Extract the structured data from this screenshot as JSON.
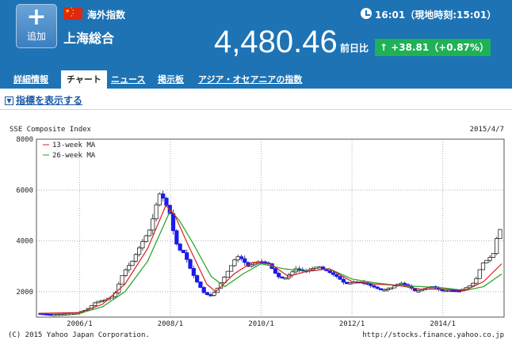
{
  "header": {
    "add_button_label": "追加",
    "category": "海外指数",
    "index_name": "上海総合",
    "time_text": "16:01（現地時刻:15:01）",
    "price": "4,480.46",
    "change_label": "前日比",
    "change_text": "↑ +38.81（+0.87%）",
    "flag_icon": "china-flag-icon",
    "colors": {
      "header_bg": "#1e73b4",
      "change_bg": "#1fb156"
    }
  },
  "tabs": [
    {
      "label": "詳細情報"
    },
    {
      "label": "チャート"
    },
    {
      "label": "ニュース"
    },
    {
      "label": "掲示板"
    },
    {
      "label": "アジア・オセアニアの指数"
    }
  ],
  "active_tab": "チャート",
  "indicator_link": "指標を表示する",
  "chart_data": {
    "type": "candlestick",
    "title": "SSE Composite Index",
    "date": "2015/4/7",
    "ylim": [
      1000,
      8000
    ],
    "y_ticks": [
      8000,
      6000,
      4000,
      2000
    ],
    "x_ticks": [
      {
        "label": "2006/1",
        "t": 2006.0
      },
      {
        "label": "2008/1",
        "t": 2008.0
      },
      {
        "label": "2010/1",
        "t": 2010.0
      },
      {
        "label": "2012/1",
        "t": 2012.0
      },
      {
        "label": "2014/1",
        "t": 2014.0
      }
    ],
    "x_range": [
      2005.05,
      2015.35
    ],
    "grid": true,
    "legend": {
      "position": "top-left",
      "entries": [
        {
          "name": "13-week MA",
          "color": "#d62020"
        },
        {
          "name": "26-week MA",
          "color": "#21a321"
        }
      ]
    },
    "up_color": "#ffffff",
    "down_color": "#1a1aee",
    "close_series": [
      [
        2005.1,
        1150
      ],
      [
        2005.4,
        1100
      ],
      [
        2005.7,
        1120
      ],
      [
        2006.0,
        1170
      ],
      [
        2006.2,
        1300
      ],
      [
        2006.4,
        1600
      ],
      [
        2006.6,
        1680
      ],
      [
        2006.8,
        1850
      ],
      [
        2007.0,
        2750
      ],
      [
        2007.2,
        3200
      ],
      [
        2007.4,
        3900
      ],
      [
        2007.6,
        4500
      ],
      [
        2007.75,
        5600
      ],
      [
        2007.83,
        6000
      ],
      [
        2007.9,
        5500
      ],
      [
        2008.0,
        5300
      ],
      [
        2008.1,
        4400
      ],
      [
        2008.2,
        3700
      ],
      [
        2008.35,
        3500
      ],
      [
        2008.5,
        2800
      ],
      [
        2008.65,
        2300
      ],
      [
        2008.8,
        1900
      ],
      [
        2008.95,
        1850
      ],
      [
        2009.1,
        2200
      ],
      [
        2009.3,
        2800
      ],
      [
        2009.5,
        3400
      ],
      [
        2009.6,
        3300
      ],
      [
        2009.75,
        3000
      ],
      [
        2010.0,
        3200
      ],
      [
        2010.2,
        3100
      ],
      [
        2010.4,
        2600
      ],
      [
        2010.55,
        2500
      ],
      [
        2010.8,
        2900
      ],
      [
        2011.0,
        2800
      ],
      [
        2011.3,
        3000
      ],
      [
        2011.5,
        2800
      ],
      [
        2011.7,
        2600
      ],
      [
        2011.9,
        2300
      ],
      [
        2012.1,
        2400
      ],
      [
        2012.3,
        2350
      ],
      [
        2012.5,
        2200
      ],
      [
        2012.7,
        2050
      ],
      [
        2012.9,
        2150
      ],
      [
        2013.1,
        2350
      ],
      [
        2013.3,
        2200
      ],
      [
        2013.45,
        2000
      ],
      [
        2013.6,
        2100
      ],
      [
        2013.8,
        2200
      ],
      [
        2014.0,
        2050
      ],
      [
        2014.2,
        2050
      ],
      [
        2014.4,
        2030
      ],
      [
        2014.6,
        2200
      ],
      [
        2014.75,
        2400
      ],
      [
        2014.9,
        3100
      ],
      [
        2015.05,
        3300
      ],
      [
        2015.15,
        3500
      ],
      [
        2015.27,
        4450
      ]
    ],
    "ma13_series": [
      [
        2005.1,
        1150
      ],
      [
        2006.0,
        1180
      ],
      [
        2006.5,
        1500
      ],
      [
        2007.0,
        2300
      ],
      [
        2007.5,
        3700
      ],
      [
        2007.9,
        5400
      ],
      [
        2008.1,
        5000
      ],
      [
        2008.4,
        3800
      ],
      [
        2008.8,
        2300
      ],
      [
        2009.0,
        2000
      ],
      [
        2009.4,
        2700
      ],
      [
        2009.8,
        3150
      ],
      [
        2010.2,
        3100
      ],
      [
        2010.6,
        2600
      ],
      [
        2011.0,
        2800
      ],
      [
        2011.5,
        2900
      ],
      [
        2012.0,
        2400
      ],
      [
        2012.5,
        2300
      ],
      [
        2013.0,
        2250
      ],
      [
        2013.5,
        2100
      ],
      [
        2014.0,
        2100
      ],
      [
        2014.5,
        2050
      ],
      [
        2014.9,
        2400
      ],
      [
        2015.3,
        3100
      ]
    ],
    "ma26_series": [
      [
        2005.1,
        1150
      ],
      [
        2006.0,
        1150
      ],
      [
        2006.5,
        1400
      ],
      [
        2007.0,
        2000
      ],
      [
        2007.5,
        3200
      ],
      [
        2008.0,
        5200
      ],
      [
        2008.2,
        4800
      ],
      [
        2008.5,
        3900
      ],
      [
        2008.9,
        2600
      ],
      [
        2009.2,
        2200
      ],
      [
        2009.6,
        2700
      ],
      [
        2010.0,
        3100
      ],
      [
        2010.5,
        2900
      ],
      [
        2011.0,
        2800
      ],
      [
        2011.5,
        2900
      ],
      [
        2012.0,
        2500
      ],
      [
        2012.5,
        2350
      ],
      [
        2013.0,
        2250
      ],
      [
        2013.5,
        2200
      ],
      [
        2014.0,
        2150
      ],
      [
        2014.5,
        2050
      ],
      [
        2014.9,
        2200
      ],
      [
        2015.3,
        2700
      ]
    ]
  },
  "footer": {
    "copyright": "(C) 2015 Yahoo Japan Corporation.",
    "source_url": "http://stocks.finance.yahoo.co.jp"
  }
}
